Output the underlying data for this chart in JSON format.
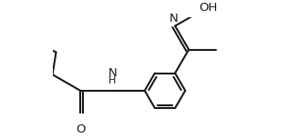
{
  "bg_color": "#ffffff",
  "line_color": "#1a1a1a",
  "line_width": 1.5,
  "figsize": [
    3.27,
    1.52
  ],
  "dpi": 100,
  "xlim": [
    0,
    6.0
  ],
  "ylim": [
    -1.2,
    1.8
  ]
}
